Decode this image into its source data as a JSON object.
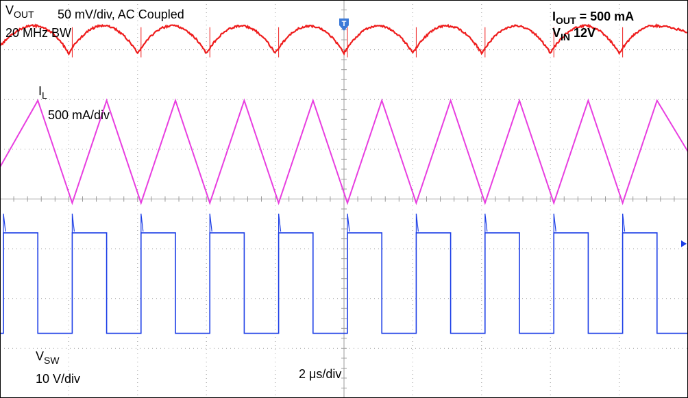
{
  "annotations": {
    "vout_label": "V",
    "vout_sub": "OUT",
    "vout_scale": "50 mV/div, AC Coupled",
    "bandwidth": "20 MHz BW",
    "il_label": "I",
    "il_sub": "L",
    "il_scale": "500 mA/div",
    "vsw_label": "V",
    "vsw_sub": "SW",
    "vsw_scale": "10 V/div",
    "timebase": "2 μs/div",
    "iout_label": "I",
    "iout_sub": "OUT",
    "iout_value": " = 500 mA",
    "vin_label": "V",
    "vin_sub": "IN",
    "vin_value": "  12V",
    "trigger_marker": "T"
  },
  "chart_data": {
    "type": "line",
    "title": "",
    "xlabel": "2 μs/div",
    "ylabel": "",
    "x_unit": "μs",
    "xlim": [
      -10,
      10
    ],
    "x_divisions": 10,
    "y_divisions": 8,
    "grid": true,
    "switching_period_us": 2.0,
    "duty_cycle": 0.5,
    "colors": {
      "vout": "#ee1c1c",
      "il": "#e83ee0",
      "vsw": "#1c3ee6",
      "grid": "#9a9a9a"
    },
    "series": [
      {
        "name": "VOUT",
        "scale": "50 mV/div",
        "coupling": "AC",
        "waveform": "ripple",
        "peak_times_us": [
          -9.0,
          -7.0,
          -5.0,
          -3.0,
          -1.0,
          1.0,
          3.0,
          5.0,
          7.0,
          9.0
        ],
        "valley_times_us": [
          -8.0,
          -6.0,
          -4.0,
          -2.0,
          0.0,
          2.0,
          4.0,
          6.0,
          8.0
        ],
        "ripple_pk_pk_div": 0.55
      },
      {
        "name": "IL",
        "scale": "500 mA/div",
        "waveform": "triangle",
        "peak_times_us": [
          -8.9,
          -6.9,
          -4.9,
          -2.9,
          -0.9,
          1.1,
          3.1,
          5.1,
          7.1,
          9.1
        ],
        "valley_times_us": [
          -7.9,
          -5.9,
          -3.9,
          -1.9,
          0.1,
          2.1,
          4.1,
          6.1,
          8.1
        ],
        "ripple_pk_pk_div": 2.0
      },
      {
        "name": "VSW",
        "scale": "10 V/div",
        "waveform": "square",
        "rising_edges_us": [
          -9.9,
          -7.9,
          -5.9,
          -3.9,
          -1.9,
          0.1,
          2.1,
          4.1,
          6.1,
          8.1
        ],
        "falling_edges_us": [
          -8.9,
          -6.9,
          -4.9,
          -2.9,
          -0.9,
          1.1,
          3.1,
          5.1,
          7.1,
          9.1
        ],
        "amplitude_div": 2.0
      }
    ]
  }
}
